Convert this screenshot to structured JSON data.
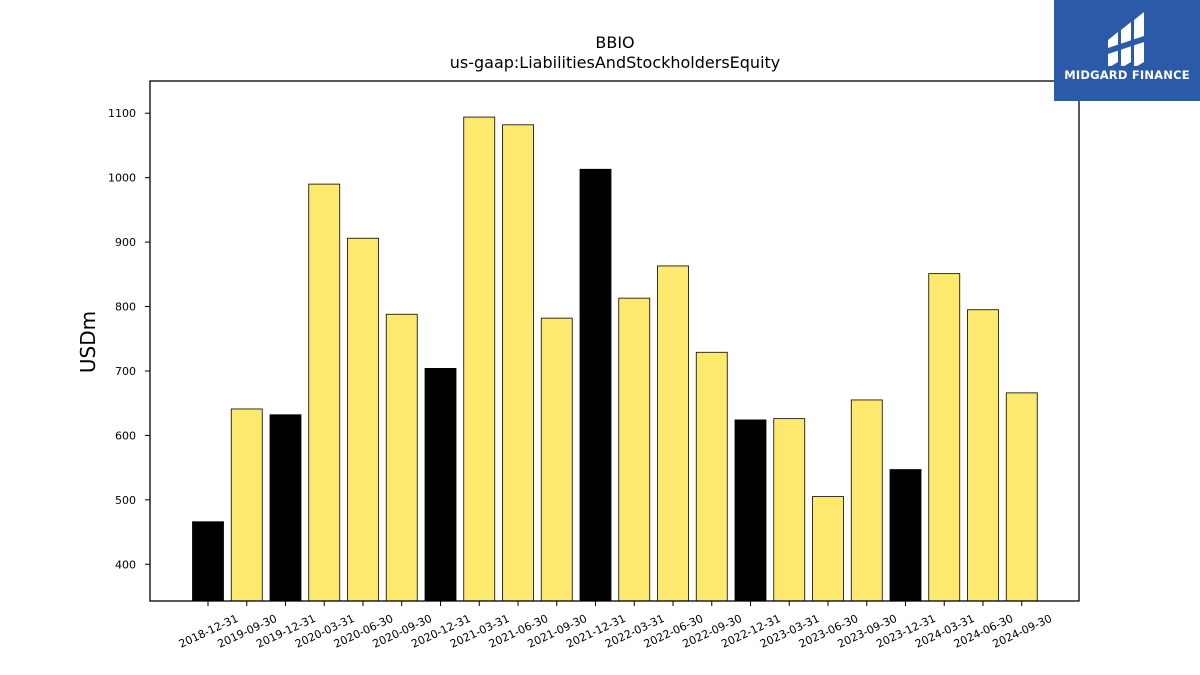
{
  "chart_data": {
    "type": "bar",
    "title": "BBIO",
    "subtitle": "us-gaap:LiabilitiesAndStockholdersEquity",
    "xlabel": "",
    "ylabel": "USDm",
    "ylim": [
      343,
      1150
    ],
    "yticks": [
      400,
      500,
      600,
      700,
      800,
      900,
      1000,
      1100
    ],
    "grid": false,
    "colors": {
      "quarter": "#fde96e",
      "year_end": "#000000",
      "edge": "#000000"
    },
    "categories": [
      "2018-12-31",
      "2019-09-30",
      "2019-12-31",
      "2020-03-31",
      "2020-06-30",
      "2020-09-30",
      "2020-12-31",
      "2021-03-31",
      "2021-06-30",
      "2021-09-30",
      "2021-12-31",
      "2022-03-31",
      "2022-06-30",
      "2022-09-30",
      "2022-12-31",
      "2023-03-31",
      "2023-06-30",
      "2023-09-30",
      "2023-12-31",
      "2024-03-31",
      "2024-06-30",
      "2024-09-30"
    ],
    "values": [
      466,
      641,
      632,
      990,
      906,
      788,
      704,
      1094,
      1082,
      782,
      1013,
      813,
      863,
      729,
      624,
      626,
      505,
      655,
      547,
      851,
      795,
      666
    ],
    "year_end": [
      true,
      false,
      true,
      false,
      false,
      false,
      true,
      false,
      false,
      false,
      true,
      false,
      false,
      false,
      true,
      false,
      false,
      false,
      true,
      false,
      false,
      false
    ]
  },
  "logo": {
    "text": "MIDGARD FINANCE",
    "icon": "midgard-logo-icon"
  }
}
